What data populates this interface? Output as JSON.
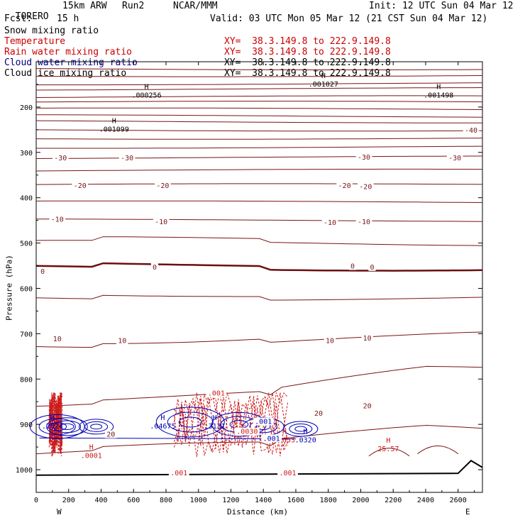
{
  "header": {
    "model": "TORERO",
    "resolution": "15km ARW",
    "run": "Run2",
    "org": "NCAR/MMM",
    "init": "Init: 12 UTC Sun 04 Mar 12",
    "fcst_label": "Fcst:",
    "fcst_value": "15 h",
    "valid": "Valid: 03 UTC Mon 05 Mar 12 (21 CST Sun 04 Mar 12)"
  },
  "fields": [
    {
      "name": "Snow mixing ratio",
      "color": "#000000",
      "xy": "",
      "to": ""
    },
    {
      "name": "Temperature",
      "color": "#cc0000",
      "xy": "XY=  38.3.149.8",
      "to": "to 222.9.149.8"
    },
    {
      "name": "Rain water mixing ratio",
      "color": "#cc0000",
      "xy": "XY=  38.3.149.8",
      "to": "to 222.9.149.8"
    },
    {
      "name": "Cloud water mixing ratio",
      "color": "#000080",
      "xy": "XY=  38.3.149.8",
      "to": "to 222.9.149.8"
    },
    {
      "name": "Cloud ice mixing ratio",
      "color": "#000000",
      "xy": "XY=  38.3.149.8",
      "to": "to 222.9.149.8"
    }
  ],
  "colors": {
    "temperature": "#7a1414",
    "zero_isotherm": "#6b0f0f",
    "rain": "#cc1a1a",
    "cloud_water": "#0000b4",
    "terrain": "#000000"
  },
  "chart_data": {
    "type": "cross-section",
    "ylabel": "Pressure (hPa)",
    "xlabel": "Distance (km)",
    "x_ticks": [
      0,
      200,
      400,
      600,
      800,
      1000,
      1200,
      1400,
      1600,
      1800,
      2000,
      2200,
      2400,
      2600
    ],
    "y_ticks": [
      200,
      300,
      400,
      500,
      600,
      700,
      800,
      900,
      1000
    ],
    "xlim": [
      0,
      2750
    ],
    "ylim": [
      100,
      1050
    ],
    "left_end": "W",
    "right_end": "E",
    "temperature_labels": [
      {
        "text": "-40",
        "x": 2680,
        "p": 250
      },
      {
        "text": "-30",
        "x": 150,
        "p": 311
      },
      {
        "text": "-30",
        "x": 560,
        "p": 311
      },
      {
        "text": "-30",
        "x": 2020,
        "p": 310
      },
      {
        "text": "-30",
        "x": 2580,
        "p": 311
      },
      {
        "text": "-20",
        "x": 270,
        "p": 372
      },
      {
        "text": "-20",
        "x": 780,
        "p": 372
      },
      {
        "text": "-20",
        "x": 1900,
        "p": 372
      },
      {
        "text": "-20",
        "x": 2030,
        "p": 375
      },
      {
        "text": "-10",
        "x": 130,
        "p": 447
      },
      {
        "text": "-10",
        "x": 770,
        "p": 452
      },
      {
        "text": "-10",
        "x": 1810,
        "p": 454
      },
      {
        "text": "-10",
        "x": 2020,
        "p": 452
      },
      {
        "text": "0",
        "x": 40,
        "p": 562
      },
      {
        "text": "0",
        "x": 730,
        "p": 552
      },
      {
        "text": "0",
        "x": 1950,
        "p": 550
      },
      {
        "text": "0",
        "x": 2070,
        "p": 552
      },
      {
        "text": "10",
        "x": 130,
        "p": 710
      },
      {
        "text": "10",
        "x": 530,
        "p": 714
      },
      {
        "text": "10",
        "x": 1810,
        "p": 714
      },
      {
        "text": "10",
        "x": 2040,
        "p": 709
      },
      {
        "text": "20",
        "x": 460,
        "p": 921
      },
      {
        "text": "20",
        "x": 1740,
        "p": 875
      },
      {
        "text": "20",
        "x": 2040,
        "p": 858
      }
    ],
    "extrema_labels": [
      {
        "mark": "H",
        "value": ".000256",
        "x": 680,
        "p": 170,
        "color": "#000000"
      },
      {
        "mark": "H",
        "value": ".001099",
        "x": 480,
        "p": 245,
        "color": "#000000"
      },
      {
        "mark": "H",
        "value": ".001498",
        "x": 2480,
        "p": 170,
        "color": "#000000"
      },
      {
        "mark": "H",
        "value": ".001027",
        "x": 1770,
        "p": 145,
        "color": "#000000"
      },
      {
        "mark": "H",
        "value": ".0001",
        "x": 340,
        "p": 965,
        "color": "#cc1a1a"
      },
      {
        "mark": "H",
        "value": "25.57",
        "x": 2170,
        "p": 950,
        "color": "#cc1a1a"
      },
      {
        "mark": "H",
        "value": ".2624",
        "x": 100,
        "p": 900,
        "color": "#0000b4"
      },
      {
        "mark": "H",
        "value": ".04675",
        "x": 780,
        "p": 900,
        "color": "#0000b4"
      },
      {
        "mark": "H",
        "value": ".3131",
        "x": 1100,
        "p": 900,
        "color": "#0000b4"
      },
      {
        "mark": "H",
        "value": ".0653",
        "x": 1530,
        "p": 930,
        "color": "#cc1a1a"
      },
      {
        "mark": "H",
        "value": ".0320",
        "x": 1660,
        "p": 930,
        "color": "#0000b4"
      }
    ],
    "rain_labels": [
      {
        "text": ".001",
        "x": 1110,
        "p": 830
      },
      {
        "text": ".001",
        "x": 880,
        "p": 1006
      },
      {
        "text": ".001",
        "x": 1550,
        "p": 1006
      },
      {
        "text": ".0030",
        "x": 1300,
        "p": 915
      }
    ],
    "cloud_labels": [
      {
        "text": ".001",
        "x": 1400,
        "p": 893
      },
      {
        "text": ".001",
        "x": 1450,
        "p": 930
      }
    ]
  }
}
